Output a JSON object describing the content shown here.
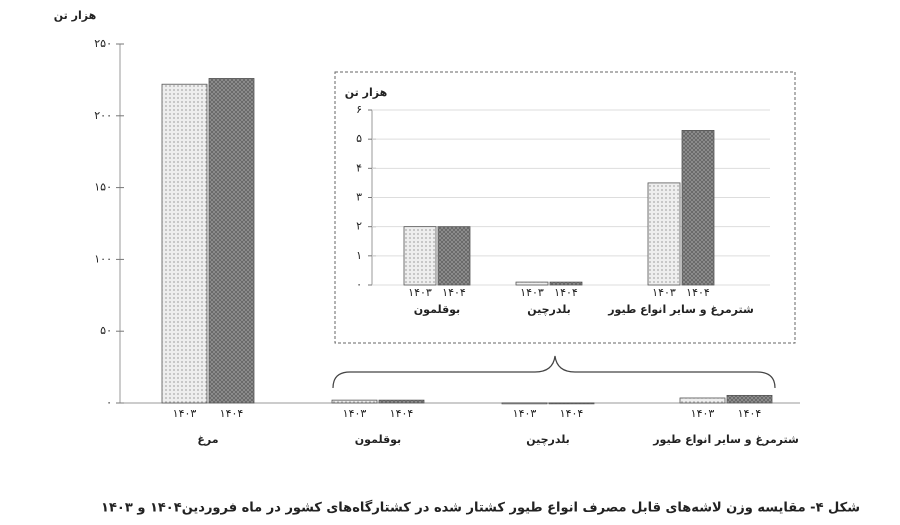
{
  "chart_data": [
    {
      "type": "bar",
      "title": "شکل ۴- مقایسه وزن لاشه‌های قابل مصرف انواع طیور کشتار شده در کشتارگاه‌های کشور در ماه فروردین۱۴۰۴ و ۱۴۰۳",
      "y_label": "هزار تن",
      "categories": [
        "مرغ",
        "بوقلمون",
        "بلدرچین",
        "شترمرغ و سایر انواع طیور"
      ],
      "series": [
        {
          "name": "۱۴۰۳",
          "color": "#eeeeee",
          "values": [
            222,
            2.0,
            0.1,
            3.5
          ]
        },
        {
          "name": "۱۴۰۴",
          "color": "#8f8f8f",
          "values": [
            226,
            2.0,
            0.1,
            5.3
          ]
        }
      ],
      "ylim": [
        0,
        250
      ],
      "yticks": [
        {
          "value": 0,
          "label": "۰"
        },
        {
          "value": 50,
          "label": "۵۰"
        },
        {
          "value": 100,
          "label": "۱۰۰"
        },
        {
          "value": 150,
          "label": "۱۵۰"
        },
        {
          "value": 200,
          "label": "۲۰۰"
        },
        {
          "value": 250,
          "label": "۲۵۰"
        }
      ],
      "grid": false
    },
    {
      "type": "bar",
      "y_label": "هزار تن",
      "categories": [
        "بوقلمون",
        "بلدرچین",
        "شترمرغ و سایر انواع طیور"
      ],
      "series": [
        {
          "name": "۱۴۰۳",
          "color": "#eeeeee",
          "values": [
            2.0,
            0.1,
            3.5
          ]
        },
        {
          "name": "۱۴۰۴",
          "color": "#8f8f8f",
          "values": [
            2.0,
            0.1,
            5.3
          ]
        }
      ],
      "ylim": [
        0,
        6
      ],
      "yticks": [
        {
          "value": 0,
          "label": "۰"
        },
        {
          "value": 1,
          "label": "۱"
        },
        {
          "value": 2,
          "label": "۲"
        },
        {
          "value": 3,
          "label": "۳"
        },
        {
          "value": 4,
          "label": "۴"
        },
        {
          "value": 5,
          "label": "۵"
        },
        {
          "value": 6,
          "label": "۶"
        }
      ],
      "grid": true
    }
  ]
}
